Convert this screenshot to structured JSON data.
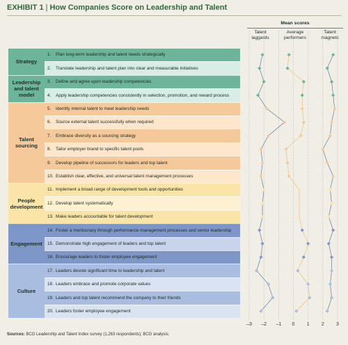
{
  "header": {
    "exhibit": "EXHIBIT 1",
    "separator": "|",
    "title": "How Companies Score on Leadership and Talent"
  },
  "colors": {
    "accent": "#2f6b3a",
    "strategy": "#6db59a",
    "strategy_light": "#d7ede5",
    "sourcing": "#f6c99a",
    "sourcing_light": "#fde6cc",
    "people": "#fbe4a8",
    "people_light": "#fdf1d1",
    "engagement": "#7f97c8",
    "engagement_light": "#c9d4ec",
    "culture": "#a9bde0",
    "culture_light": "#dae3f2",
    "laggards_line": "#5f7f9a",
    "performers_line": "#eac07a",
    "magnets_line": "#5f7f9a"
  },
  "categories": [
    {
      "label": "Strategy",
      "rows": [
        1,
        2
      ]
    },
    {
      "label": "Leadership and talent model",
      "rows": [
        3,
        4
      ]
    },
    {
      "label": "Talent sourcing",
      "rows": [
        5,
        6,
        7,
        8,
        9,
        10
      ]
    },
    {
      "label": "People development",
      "rows": [
        11,
        12,
        13
      ]
    },
    {
      "label": "Engagement",
      "rows": [
        14,
        15,
        16
      ]
    },
    {
      "label": "Culture",
      "rows": [
        17,
        18,
        19,
        20
      ]
    }
  ],
  "rows": [
    {
      "num": "1.",
      "text": "Plan long-term leadership and talent needs strategically"
    },
    {
      "num": "2.",
      "text": "Translate leadership and talent plan into clear and measurable initiatives"
    },
    {
      "num": "3.",
      "text": "Define and agree upon leadership competencies"
    },
    {
      "num": "4.",
      "text": "Apply leadership competencies consistently in selection, promotion, and reward process"
    },
    {
      "num": "5.",
      "text": "Identify internal talent to meet leadership needs"
    },
    {
      "num": "6.",
      "text": "Source external talent successfully when required"
    },
    {
      "num": "7.",
      "text": "Embrace diversity as a sourcing strategy"
    },
    {
      "num": "8.",
      "text": "Tailor employer brand to specific talent pools"
    },
    {
      "num": "9.",
      "text": "Develop pipeline of successors for leaders and top talent"
    },
    {
      "num": "10.",
      "text": "Establish clear, effective, and universal talent management processes"
    },
    {
      "num": "11.",
      "text": "Implement a broad range of development tools and opportunities"
    },
    {
      "num": "12.",
      "text": "Develop talent systematically"
    },
    {
      "num": "13.",
      "text": "Make leaders accountable for talent development"
    },
    {
      "num": "14.",
      "text": "Foster a meritocracy through performance management processes and senior leadership"
    },
    {
      "num": "15.",
      "text": "Demonstrate high engagement of leaders and top talent"
    },
    {
      "num": "16.",
      "text": "Encourage leaders to foster employee engagement"
    },
    {
      "num": "17.",
      "text": "Leaders devote significant time to leadership and talent"
    },
    {
      "num": "18.",
      "text": "Leaders embrace and promote corporate values"
    },
    {
      "num": "19.",
      "text": "Leaders and top talent recommend the company to their friends"
    },
    {
      "num": "20.",
      "text": "Leaders foster employee engagement"
    }
  ],
  "chart_data": {
    "type": "line",
    "title": "Mean scores",
    "xlim": [
      -3,
      3
    ],
    "x_ticks": [
      "–3",
      "–2",
      "–1",
      "0",
      "1",
      "2",
      "3"
    ],
    "x_tick_values": [
      -3,
      -2,
      -1,
      0,
      1,
      2,
      3
    ],
    "categories": [
      "1",
      "2",
      "3",
      "4",
      "5",
      "6",
      "7",
      "8",
      "9",
      "10",
      "11",
      "12",
      "13",
      "14",
      "15",
      "16",
      "17",
      "18",
      "19",
      "20"
    ],
    "series": [
      {
        "name": "Talent laggards",
        "values": [
          -2.1,
          -2.3,
          -2.0,
          -2.4,
          -1.8,
          -0.6,
          -1.7,
          -2.2,
          -2.1,
          -2.2,
          -2.0,
          -2.1,
          -2.1,
          -2.3,
          -2.1,
          -2.2,
          -2.5,
          -1.7,
          -1.4,
          -2.2
        ]
      },
      {
        "name": "Average performers",
        "values": [
          -0.3,
          -0.4,
          0.7,
          0.6,
          0.6,
          0.7,
          0.5,
          -0.5,
          -0.4,
          -0.3,
          0.4,
          0.4,
          0.4,
          0.6,
          1.0,
          0.7,
          0.3,
          1.0,
          1.1,
          0.2
        ]
      },
      {
        "name": "Talent magnets",
        "values": [
          2.7,
          2.3,
          2.6,
          2.7,
          2.8,
          2.6,
          2.5,
          2.0,
          2.3,
          2.7,
          2.5,
          2.6,
          2.4,
          2.7,
          2.4,
          2.6,
          2.6,
          2.5,
          2.6,
          2.3
        ]
      }
    ]
  },
  "sources": {
    "label": "Sources:",
    "text": "BCG Leadership and Talent Index survey (1,263 respondents); BCG analysis."
  }
}
